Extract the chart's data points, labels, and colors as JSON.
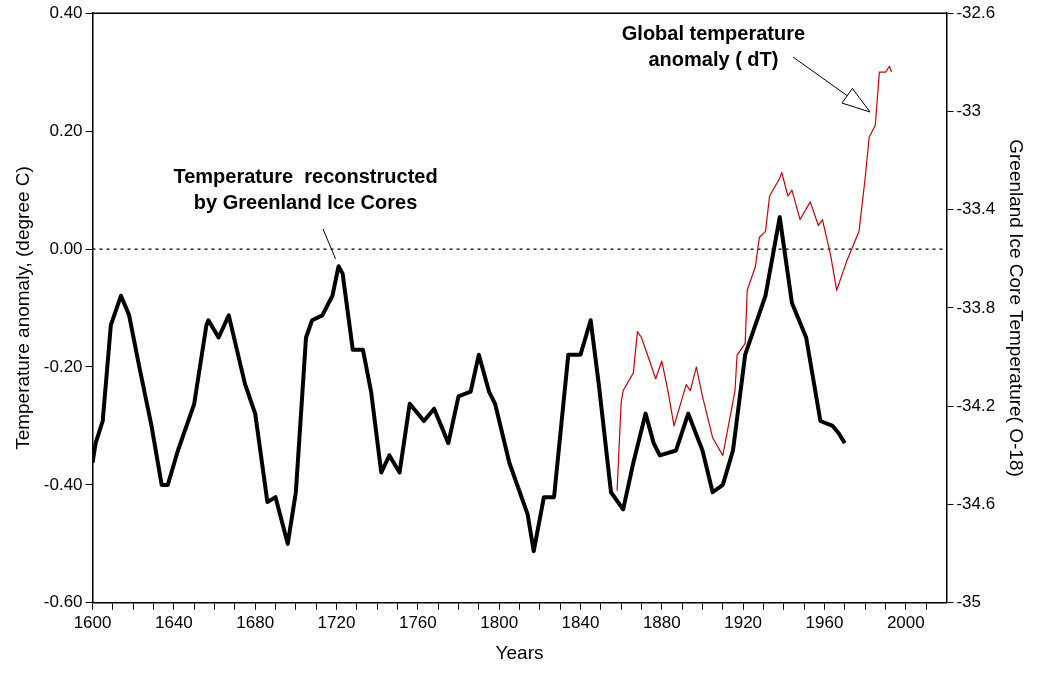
{
  "chart_data": {
    "type": "line",
    "xlabel": "Years",
    "ylabel": "Temperature anomaly, (degree C)",
    "y2label": "Greenland Ice Core Temperature( O-18)",
    "xlim": [
      1600,
      2020
    ],
    "xticks": [
      1600,
      {
        "value": 1610,
        "label": null
      },
      {
        "value": 1620,
        "label": null
      },
      {
        "value": 1630,
        "label": null
      },
      1640,
      {
        "value": 1650,
        "label": null
      },
      {
        "value": 1660,
        "label": null
      },
      {
        "value": 1670,
        "label": null
      },
      1680,
      {
        "value": 1690,
        "label": null
      },
      {
        "value": 1700,
        "label": null
      },
      {
        "value": 1710,
        "label": null
      },
      1720,
      {
        "value": 1730,
        "label": null
      },
      {
        "value": 1740,
        "label": null
      },
      {
        "value": 1750,
        "label": null
      },
      1760,
      {
        "value": 1770,
        "label": null
      },
      {
        "value": 1780,
        "label": null
      },
      {
        "value": 1790,
        "label": null
      },
      1800,
      {
        "value": 1810,
        "label": null
      },
      {
        "value": 1820,
        "label": null
      },
      {
        "value": 1830,
        "label": null
      },
      1840,
      {
        "value": 1850,
        "label": null
      },
      {
        "value": 1860,
        "label": null
      },
      {
        "value": 1870,
        "label": null
      },
      1880,
      {
        "value": 1890,
        "label": null
      },
      {
        "value": 1900,
        "label": null
      },
      {
        "value": 1910,
        "label": null
      },
      1920,
      {
        "value": 1930,
        "label": null
      },
      {
        "value": 1940,
        "label": null
      },
      {
        "value": 1950,
        "label": null
      },
      1960,
      {
        "value": 1970,
        "label": null
      },
      {
        "value": 1980,
        "label": null
      },
      {
        "value": 1990,
        "label": null
      },
      2000,
      {
        "value": 2010,
        "label": null
      }
    ],
    "ylim": [
      -0.6,
      0.4
    ],
    "yticks": [
      {
        "value": -0.6,
        "label": "-0.60"
      },
      {
        "value": -0.4,
        "label": "-0.40"
      },
      {
        "value": -0.2,
        "label": "-0.20"
      },
      {
        "value": 0,
        "label": "0.00"
      },
      {
        "value": 0.2,
        "label": "0.20"
      },
      {
        "value": 0.4,
        "label": "0.40"
      }
    ],
    "y2lim": [
      -35,
      -32.6
    ],
    "y2ticks": [
      -35,
      -34.6,
      -34.2,
      -33.8,
      -33.4,
      -33,
      -32.6
    ],
    "grid": false,
    "legend": false,
    "marker": "none",
    "ref_lines": [
      {
        "axis": "y",
        "value": 0,
        "color": "#000000",
        "line_style": "dotted"
      }
    ],
    "annotations": [
      {
        "text": "Temperature  reconstructed\nby Greenland Ice Cores",
        "x": 1721,
        "y": -0.03
      },
      "Global temperature\nanomaly ( dT)"
    ],
    "series": [
      {
        "color": "#000000",
        "axis": "y2",
        "line_style": "solid",
        "x": [
          1600,
          1601.5,
          1605,
          1609,
          1614,
          1618,
          1623,
          1629,
          1634,
          1637,
          1642,
          1650,
          1656,
          1657,
          1662,
          1667,
          1675,
          1680,
          1686,
          1690,
          1696,
          1700,
          1705,
          1708,
          1713,
          1718,
          1721,
          1723,
          1728,
          1733,
          1737,
          1742,
          1746,
          1751,
          1756,
          1763,
          1768,
          1775,
          1780,
          1786,
          1790,
          1795,
          1798,
          1805,
          1814,
          1817,
          1822,
          1827,
          1834,
          1840,
          1845,
          1849,
          1855,
          1861,
          1866,
          1872,
          1876,
          1879,
          1887,
          1893,
          1900,
          1905,
          1910,
          1915,
          1921,
          1926,
          1931,
          1938,
          1944,
          1951,
          1958,
          1964,
          1967,
          1970
        ],
        "values": [
          -34.43,
          -34.35,
          -34.26,
          -33.87,
          -33.75,
          -33.83,
          -34.04,
          -34.28,
          -34.52,
          -34.52,
          -34.38,
          -34.19,
          -33.87,
          -33.85,
          -33.92,
          -33.83,
          -34.11,
          -34.23,
          -34.59,
          -34.57,
          -34.76,
          -34.55,
          -33.92,
          -33.85,
          -33.83,
          -33.75,
          -33.63,
          -33.66,
          -33.97,
          -33.97,
          -34.14,
          -34.47,
          -34.4,
          -34.47,
          -34.19,
          -34.26,
          -34.21,
          -34.35,
          -34.16,
          -34.14,
          -33.99,
          -34.14,
          -34.19,
          -34.43,
          -34.64,
          -34.79,
          -34.57,
          -34.57,
          -33.99,
          -33.99,
          -33.85,
          -34.11,
          -34.55,
          -34.62,
          -34.43,
          -34.23,
          -34.35,
          -34.4,
          -34.38,
          -34.23,
          -34.38,
          -34.55,
          -34.52,
          -34.38,
          -33.99,
          -33.87,
          -33.75,
          -33.43,
          -33.78,
          -33.92,
          -34.26,
          -34.28,
          -34.31,
          -34.35
        ]
      },
      {
        "color": "#cc0000",
        "axis": "y",
        "line_style": "solid",
        "x": [
          1858,
          1860,
          1861,
          1866,
          1868,
          1870,
          1877,
          1880,
          1883,
          1886,
          1892,
          1894,
          1897,
          1900,
          1905,
          1910,
          1916,
          1917,
          1921,
          1922,
          1926,
          1928,
          1931,
          1933,
          1938,
          1939,
          1942,
          1944,
          1948,
          1953,
          1957,
          1959,
          1963,
          1966,
          1971,
          1977,
          1980,
          1982,
          1985,
          1987,
          1990,
          1992,
          1993
        ],
        "values": [
          -0.41,
          -0.26,
          -0.24,
          -0.21,
          -0.14,
          -0.15,
          -0.22,
          -0.19,
          -0.24,
          -0.3,
          -0.23,
          -0.24,
          -0.2,
          -0.25,
          -0.32,
          -0.35,
          -0.24,
          -0.18,
          -0.16,
          -0.07,
          -0.03,
          0.02,
          0.03,
          0.09,
          0.12,
          0.13,
          0.09,
          0.1,
          0.05,
          0.08,
          0.04,
          0.05,
          -0.01,
          -0.07,
          -0.02,
          0.03,
          0.12,
          0.19,
          0.21,
          0.3,
          0.3,
          0.31,
          0.3
        ]
      }
    ]
  }
}
